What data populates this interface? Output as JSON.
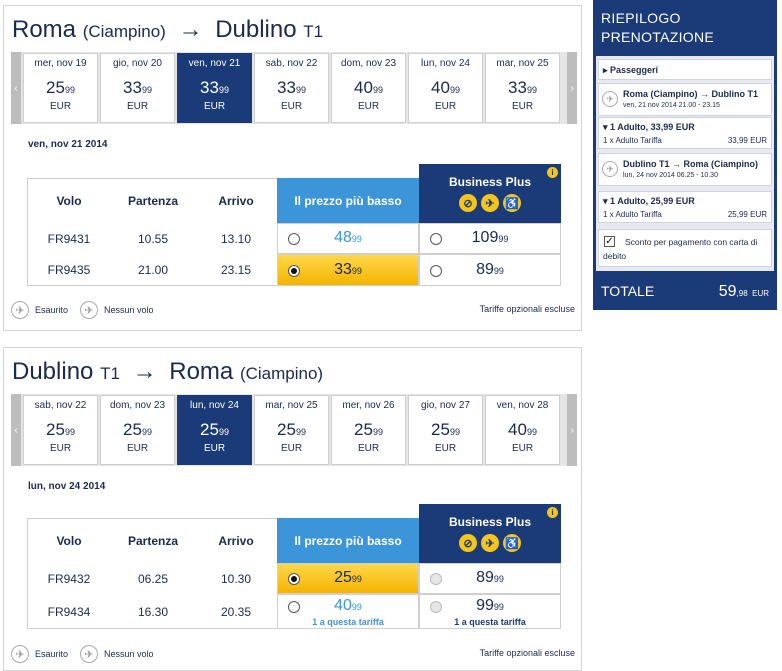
{
  "outbound": {
    "from": "Roma",
    "from_airport": "(Ciampino)",
    "arrow": "→",
    "to": "Dublino",
    "to_terminal": "T1",
    "nav_prev": "‹",
    "nav_next": "›",
    "dates": [
      {
        "label": "mer, nov 19",
        "int": "25",
        "dec": "99",
        "cur": "EUR"
      },
      {
        "label": "gio, nov 20",
        "int": "33",
        "dec": "99",
        "cur": "EUR"
      },
      {
        "label": "ven, nov 21",
        "int": "33",
        "dec": "99",
        "cur": "EUR"
      },
      {
        "label": "sab, nov 22",
        "int": "33",
        "dec": "99",
        "cur": "EUR"
      },
      {
        "label": "dom, nov 23",
        "int": "40",
        "dec": "99",
        "cur": "EUR"
      },
      {
        "label": "lun, nov 24",
        "int": "40",
        "dec": "99",
        "cur": "EUR"
      },
      {
        "label": "mar, nov 25",
        "int": "33",
        "dec": "99",
        "cur": "EUR"
      }
    ],
    "selected_date": "ven, nov 21 2014",
    "flights": [
      {
        "code": "FR9431",
        "dep": "10.55",
        "arr": "13.10",
        "low_int": "48",
        "low_dec": "99",
        "biz_int": "109",
        "biz_dec": "99"
      },
      {
        "code": "FR9435",
        "dep": "21.00",
        "arr": "23.15",
        "low_int": "33",
        "low_dec": "99",
        "biz_int": "89",
        "biz_dec": "99"
      }
    ]
  },
  "return": {
    "from": "Dublino",
    "from_terminal": "T1",
    "arrow": "→",
    "to": "Roma",
    "to_airport": "(Ciampino)",
    "nav_prev": "‹",
    "nav_next": "›",
    "dates": [
      {
        "label": "sab, nov 22",
        "int": "25",
        "dec": "99",
        "cur": "EUR"
      },
      {
        "label": "dom, nov 23",
        "int": "25",
        "dec": "99",
        "cur": "EUR"
      },
      {
        "label": "lun, nov 24",
        "int": "25",
        "dec": "99",
        "cur": "EUR"
      },
      {
        "label": "mar, nov 25",
        "int": "25",
        "dec": "99",
        "cur": "EUR"
      },
      {
        "label": "mer, nov 26",
        "int": "25",
        "dec": "99",
        "cur": "EUR"
      },
      {
        "label": "gio, nov 27",
        "int": "25",
        "dec": "99",
        "cur": "EUR"
      },
      {
        "label": "ven, nov 28",
        "int": "40",
        "dec": "99",
        "cur": "EUR"
      }
    ],
    "selected_date": "lun, nov 24 2014",
    "flights": [
      {
        "code": "FR9432",
        "dep": "06.25",
        "arr": "10.30",
        "low_int": "25",
        "low_dec": "99",
        "biz_int": "89",
        "biz_dec": "99",
        "low_note": "",
        "biz_note": ""
      },
      {
        "code": "FR9434",
        "dep": "16.30",
        "arr": "20.35",
        "low_int": "40",
        "low_dec": "99",
        "biz_int": "99",
        "biz_dec": "99",
        "low_note": "1 a questa tariffa",
        "biz_note": "1 a questa tariffa"
      }
    ]
  },
  "table_headers": {
    "flight": "Volo",
    "departure": "Partenza",
    "arrival": "Arrivo",
    "lowest": "Il prezzo più basso",
    "business": "Business Plus",
    "info": "i"
  },
  "icons": {
    "business": [
      "bag-icon",
      "fast-track-icon",
      "accessible-seat-icon"
    ],
    "sold_out": "plane-icon",
    "no_flight": "plane-icon"
  },
  "legend": {
    "sold_out": "Esaurito",
    "no_flight": "Nessun volo",
    "optional_fees": "Tariffe opzionali escluse"
  },
  "summary": {
    "title_line1": "RIEPILOGO",
    "title_line2": "PRENOTAZIONE",
    "passengers": "▸ Passeggeri",
    "legs": [
      {
        "title": "Roma (Ciampino) → Dublino T1",
        "time": "ven, 21 nov 2014 21.00 - 23.15",
        "adult": "▾ 1 Adulto, 33,99 EUR",
        "fare_label": "1 x Adulto Tariffa",
        "fare_price": "33,99 EUR"
      },
      {
        "title": "Dublino T1 → Roma (Ciampino)",
        "time": "lun, 24 nov 2014 06.25 - 10.30",
        "adult": "▾ 1 Adulto, 25,99 EUR",
        "fare_label": "1 x Adulto Tariffa",
        "fare_price": "25,99 EUR"
      }
    ],
    "discount_check": "✓",
    "discount": "Sconto per pagamento con carta di debito",
    "total_label": "TOTALE",
    "total_int": "59",
    "total_dec": ",98",
    "total_cur": "EUR"
  },
  "colors": {
    "navy": "#1b3a78",
    "lowest_header": "#3d95d9",
    "selected_fare": "#f4b400",
    "icon_yellow": "#f5c518"
  }
}
